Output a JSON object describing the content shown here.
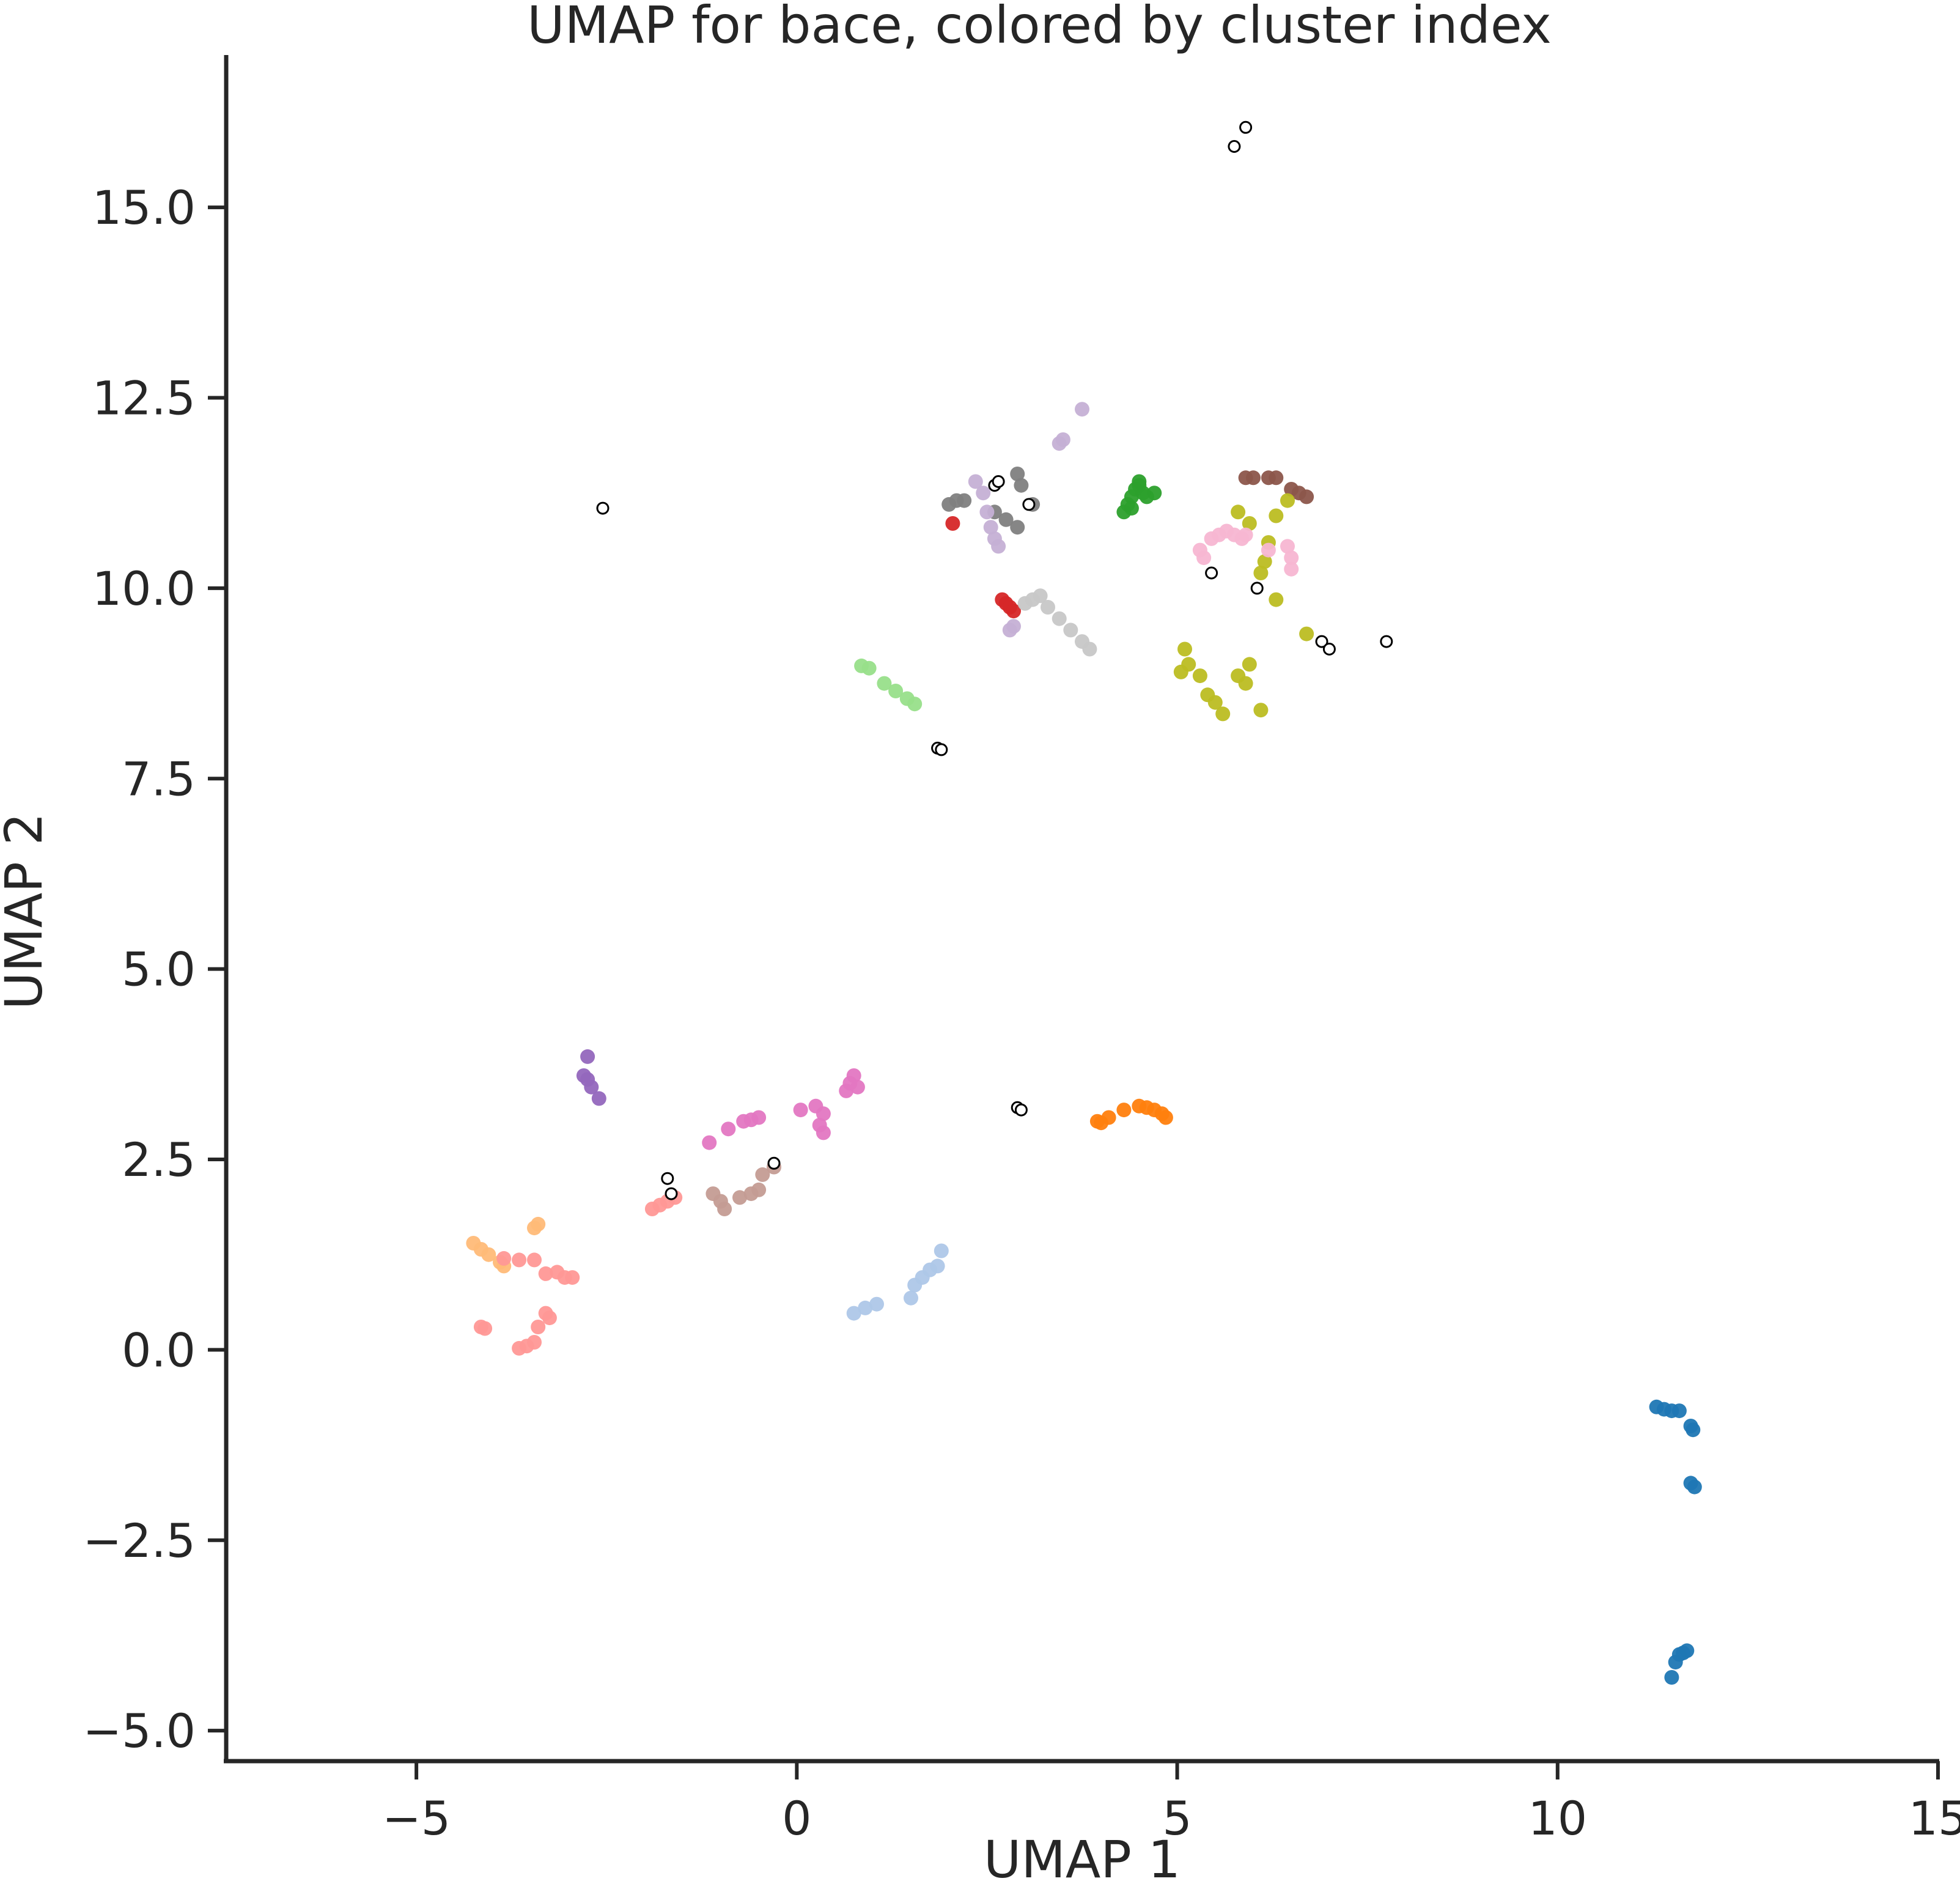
{
  "chart_data": {
    "type": "scatter",
    "title": "UMAP for bace, colored by cluster index",
    "xlabel": "UMAP 1",
    "ylabel": "UMAP 2",
    "xlim": [
      -7.5,
      15
    ],
    "ylim": [
      -5.4,
      17.0
    ],
    "xticks": [
      -5,
      0,
      5,
      10,
      15
    ],
    "xtick_labels": [
      "−5",
      "0",
      "5",
      "10",
      "15"
    ],
    "yticks": [
      -5.0,
      -2.5,
      0.0,
      2.5,
      5.0,
      7.5,
      10.0,
      12.5,
      15.0
    ],
    "ytick_labels": [
      "−5.0",
      "−2.5",
      "0.0",
      "2.5",
      "5.0",
      "7.5",
      "10.0",
      "12.5",
      "15.0"
    ],
    "grid": false,
    "legend": false,
    "series": [
      {
        "color": "#1f77b4",
        "points": [
          [
            11.3,
            -0.75
          ],
          [
            11.4,
            -0.78
          ],
          [
            11.5,
            -0.8
          ],
          [
            11.6,
            -0.8
          ],
          [
            11.75,
            -1.0
          ],
          [
            11.78,
            -1.05
          ],
          [
            11.75,
            -1.75
          ],
          [
            11.8,
            -1.8
          ],
          [
            11.6,
            -4.0
          ],
          [
            11.65,
            -3.98
          ],
          [
            11.7,
            -3.95
          ],
          [
            11.55,
            -4.1
          ],
          [
            11.5,
            -4.3
          ]
        ]
      },
      {
        "color": "#ff7f0e",
        "points": [
          [
            3.95,
            3.0
          ],
          [
            4.0,
            2.98
          ],
          [
            4.1,
            3.05
          ],
          [
            4.3,
            3.15
          ],
          [
            4.5,
            3.2
          ],
          [
            4.6,
            3.18
          ],
          [
            4.7,
            3.15
          ],
          [
            4.8,
            3.1
          ],
          [
            4.85,
            3.05
          ]
        ]
      },
      {
        "color": "#2ca02c",
        "points": [
          [
            4.3,
            11.0
          ],
          [
            4.35,
            11.1
          ],
          [
            4.4,
            11.2
          ],
          [
            4.45,
            11.3
          ],
          [
            4.5,
            11.35
          ],
          [
            4.55,
            11.25
          ],
          [
            4.6,
            11.2
          ],
          [
            4.7,
            11.25
          ],
          [
            4.4,
            11.05
          ],
          [
            4.5,
            11.4
          ]
        ]
      },
      {
        "color": "#d62728",
        "points": [
          [
            2.05,
            10.85
          ],
          [
            2.7,
            9.85
          ],
          [
            2.75,
            9.8
          ],
          [
            2.8,
            9.75
          ],
          [
            2.85,
            9.7
          ]
        ]
      },
      {
        "color": "#9467bd",
        "points": [
          [
            -2.75,
            3.85
          ],
          [
            -2.8,
            3.6
          ],
          [
            -2.75,
            3.55
          ],
          [
            -2.7,
            3.45
          ],
          [
            -2.6,
            3.3
          ]
        ]
      },
      {
        "color": "#8c564b",
        "points": [
          [
            5.9,
            11.45
          ],
          [
            6.0,
            11.45
          ],
          [
            6.2,
            11.45
          ],
          [
            6.3,
            11.45
          ],
          [
            6.5,
            11.3
          ],
          [
            6.6,
            11.25
          ],
          [
            6.7,
            11.2
          ]
        ]
      },
      {
        "color": "#e377c2",
        "points": [
          [
            -1.15,
            2.72
          ],
          [
            -0.9,
            2.9
          ],
          [
            -0.7,
            3.0
          ],
          [
            -0.5,
            3.05
          ],
          [
            -0.6,
            3.02
          ],
          [
            0.05,
            3.15
          ],
          [
            0.25,
            3.2
          ],
          [
            0.35,
            3.1
          ],
          [
            0.3,
            2.95
          ],
          [
            0.35,
            2.85
          ],
          [
            0.65,
            3.4
          ],
          [
            0.7,
            3.5
          ],
          [
            0.75,
            3.6
          ],
          [
            0.8,
            3.45
          ]
        ]
      },
      {
        "color": "#7f7f7f",
        "points": [
          [
            2.0,
            11.1
          ],
          [
            2.1,
            11.15
          ],
          [
            2.2,
            11.15
          ],
          [
            2.6,
            11.0
          ],
          [
            2.75,
            10.9
          ],
          [
            2.9,
            10.8
          ],
          [
            2.9,
            11.5
          ],
          [
            2.95,
            11.35
          ],
          [
            3.1,
            11.1
          ]
        ]
      },
      {
        "color": "#bcbd22",
        "points": [
          [
            5.1,
            9.2
          ],
          [
            5.15,
            9.0
          ],
          [
            5.05,
            8.9
          ],
          [
            5.3,
            8.85
          ],
          [
            5.4,
            8.6
          ],
          [
            5.5,
            8.5
          ],
          [
            5.6,
            8.35
          ],
          [
            5.8,
            8.85
          ],
          [
            5.9,
            8.75
          ],
          [
            5.95,
            9.0
          ],
          [
            6.1,
            8.4
          ],
          [
            5.8,
            11.0
          ],
          [
            5.95,
            10.85
          ],
          [
            6.2,
            10.6
          ],
          [
            6.3,
            10.95
          ],
          [
            6.45,
            11.15
          ],
          [
            6.1,
            10.2
          ],
          [
            6.15,
            10.35
          ],
          [
            6.3,
            9.85
          ],
          [
            6.7,
            9.4
          ]
        ]
      },
      {
        "color": "#17becf",
        "points": []
      },
      {
        "color": "#aec7e8",
        "points": [
          [
            0.75,
            0.48
          ],
          [
            0.9,
            0.55
          ],
          [
            1.05,
            0.6
          ],
          [
            1.5,
            0.68
          ],
          [
            1.55,
            0.85
          ],
          [
            1.65,
            0.95
          ],
          [
            1.75,
            1.05
          ],
          [
            1.85,
            1.1
          ],
          [
            1.9,
            1.3
          ]
        ]
      },
      {
        "color": "#ffbb78",
        "points": [
          [
            -4.25,
            1.4
          ],
          [
            -4.15,
            1.32
          ],
          [
            -4.05,
            1.25
          ],
          [
            -3.9,
            1.15
          ],
          [
            -3.85,
            1.1
          ],
          [
            -3.45,
            1.6
          ],
          [
            -3.4,
            1.65
          ]
        ]
      },
      {
        "color": "#98df8a",
        "points": [
          [
            0.85,
            8.98
          ],
          [
            0.95,
            8.95
          ],
          [
            1.15,
            8.75
          ],
          [
            1.3,
            8.65
          ],
          [
            1.45,
            8.55
          ],
          [
            1.55,
            8.48
          ]
        ]
      },
      {
        "color": "#ff9896",
        "points": [
          [
            -4.15,
            0.3
          ],
          [
            -4.1,
            0.28
          ],
          [
            -3.85,
            1.2
          ],
          [
            -3.65,
            1.18
          ],
          [
            -3.45,
            1.18
          ],
          [
            -3.3,
            1.0
          ],
          [
            -3.15,
            1.02
          ],
          [
            -3.05,
            0.95
          ],
          [
            -2.95,
            0.95
          ],
          [
            -3.3,
            0.48
          ],
          [
            -3.4,
            0.3
          ],
          [
            -3.45,
            0.1
          ],
          [
            -3.55,
            0.05
          ],
          [
            -3.65,
            0.02
          ],
          [
            -3.25,
            0.42
          ],
          [
            -1.9,
            1.85
          ],
          [
            -1.8,
            1.9
          ],
          [
            -1.7,
            1.95
          ],
          [
            -1.6,
            2.0
          ]
        ]
      },
      {
        "color": "#c5b0d5",
        "points": [
          [
            2.35,
            11.4
          ],
          [
            2.45,
            11.25
          ],
          [
            2.5,
            11.0
          ],
          [
            2.55,
            10.8
          ],
          [
            2.6,
            10.65
          ],
          [
            2.65,
            10.55
          ],
          [
            2.8,
            9.45
          ],
          [
            2.85,
            9.5
          ],
          [
            3.45,
            11.9
          ],
          [
            3.5,
            11.95
          ],
          [
            3.75,
            12.35
          ]
        ]
      },
      {
        "color": "#c49c94",
        "points": [
          [
            -1.1,
            2.05
          ],
          [
            -1.0,
            1.95
          ],
          [
            -0.95,
            1.85
          ],
          [
            -0.75,
            2.0
          ],
          [
            -0.6,
            2.05
          ],
          [
            -0.5,
            2.1
          ],
          [
            -0.45,
            2.3
          ],
          [
            -0.3,
            2.4
          ]
        ]
      },
      {
        "color": "#f7b6d2",
        "points": [
          [
            5.3,
            10.5
          ],
          [
            5.35,
            10.4
          ],
          [
            5.45,
            10.65
          ],
          [
            5.55,
            10.7
          ],
          [
            5.65,
            10.75
          ],
          [
            5.75,
            10.7
          ],
          [
            5.85,
            10.65
          ],
          [
            5.9,
            10.7
          ],
          [
            6.2,
            10.5
          ],
          [
            6.45,
            10.55
          ],
          [
            6.5,
            10.4
          ],
          [
            6.5,
            10.25
          ]
        ]
      },
      {
        "color": "#c7c7c7",
        "points": [
          [
            3.0,
            9.8
          ],
          [
            3.1,
            9.85
          ],
          [
            3.2,
            9.9
          ],
          [
            3.3,
            9.75
          ],
          [
            3.45,
            9.6
          ],
          [
            3.6,
            9.45
          ],
          [
            3.75,
            9.3
          ],
          [
            3.85,
            9.2
          ]
        ]
      },
      {
        "color": "#ffffff",
        "outline": true,
        "points": [
          [
            -2.55,
            11.05
          ],
          [
            5.75,
            15.8
          ],
          [
            5.9,
            16.05
          ],
          [
            2.6,
            11.35
          ],
          [
            2.65,
            11.4
          ],
          [
            3.05,
            11.1
          ],
          [
            5.45,
            10.2
          ],
          [
            6.05,
            10.0
          ],
          [
            6.9,
            9.3
          ],
          [
            7.0,
            9.2
          ],
          [
            7.75,
            9.3
          ],
          [
            1.85,
            7.9
          ],
          [
            1.9,
            7.88
          ],
          [
            2.9,
            3.18
          ],
          [
            2.95,
            3.15
          ],
          [
            -1.7,
            2.25
          ],
          [
            -1.65,
            2.05
          ],
          [
            -0.3,
            2.45
          ]
        ]
      }
    ]
  }
}
